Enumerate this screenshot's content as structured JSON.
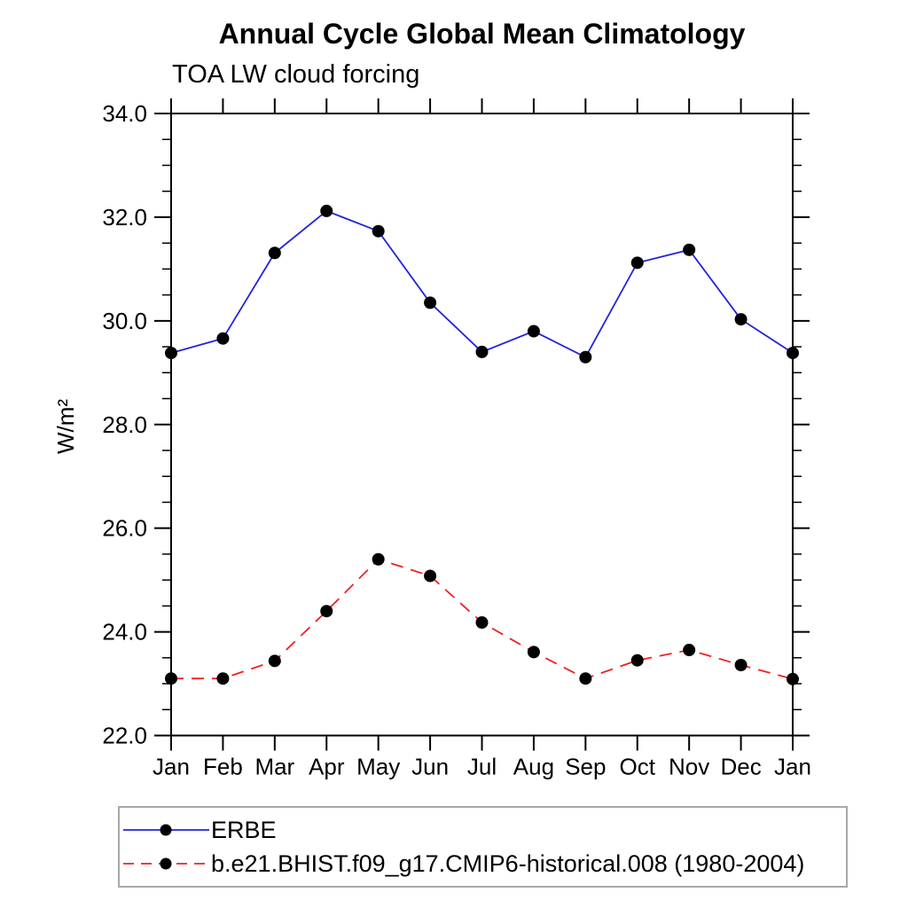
{
  "header": {
    "title": "Annual Cycle Global Mean Climatology",
    "subtitle": "TOA LW cloud forcing"
  },
  "chart_data": {
    "type": "line",
    "title": "Annual Cycle Global Mean Climatology",
    "subtitle": "TOA LW cloud forcing",
    "xlabel": "",
    "ylabel": "W/m²",
    "categories": [
      "Jan",
      "Feb",
      "Mar",
      "Apr",
      "May",
      "Jun",
      "Jul",
      "Aug",
      "Sep",
      "Oct",
      "Nov",
      "Dec",
      "Jan"
    ],
    "ylim": [
      22.0,
      34.0
    ],
    "ytick_major_step": 2.0,
    "ytick_minor_step": 0.5,
    "ytick_labels": [
      "22.0",
      "24.0",
      "26.0",
      "28.0",
      "30.0",
      "32.0",
      "34.0"
    ],
    "grid": false,
    "legend_position": "bottom-left-box",
    "axis_color": "#000000",
    "marker_shape": "filled-circle",
    "series": [
      {
        "name": "ERBE",
        "color": "#2222dd",
        "line_style": "solid",
        "marker_color": "#000000",
        "values": [
          29.38,
          29.66,
          31.31,
          32.12,
          31.73,
          30.35,
          29.4,
          29.8,
          29.3,
          31.12,
          31.37,
          30.03,
          29.38
        ]
      },
      {
        "name": "b.e21.BHIST.f09_g17.CMIP6-historical.008 (1980-2004)",
        "color": "#ee2222",
        "line_style": "dashed",
        "marker_color": "#000000",
        "values": [
          23.1,
          23.1,
          23.44,
          24.4,
          25.4,
          25.08,
          24.18,
          23.61,
          23.1,
          23.45,
          23.65,
          23.36,
          23.09
        ]
      }
    ]
  }
}
